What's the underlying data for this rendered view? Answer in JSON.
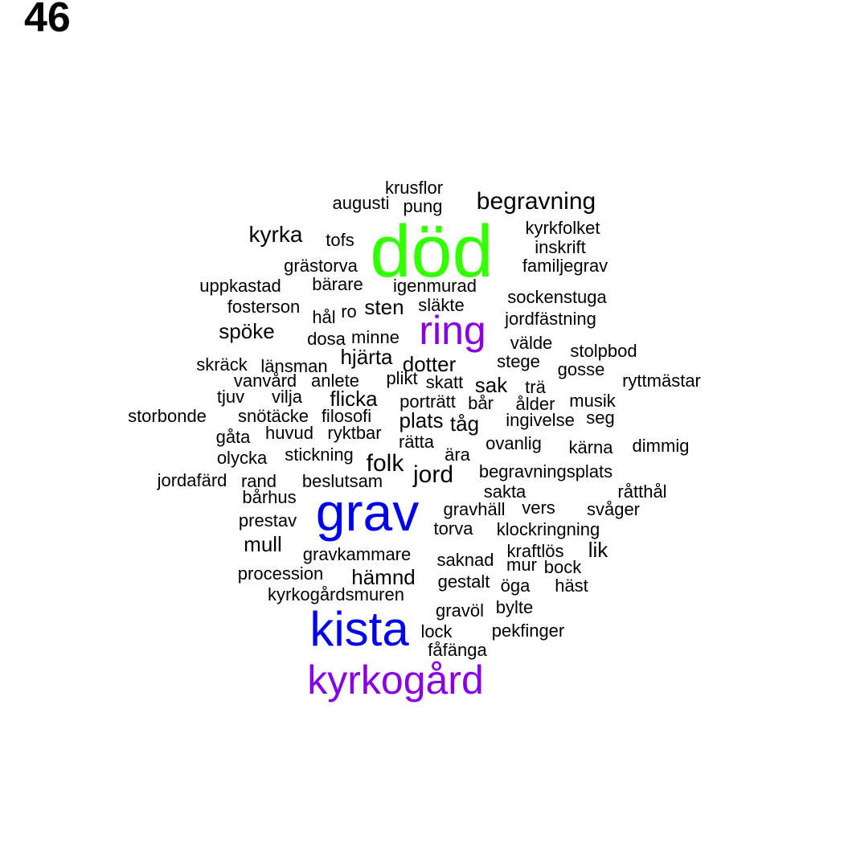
{
  "page": {
    "label": "46"
  },
  "colors": {
    "default": "#000000",
    "green": "#33ff00",
    "blue": "#0000ee",
    "purple": "#8a00e6"
  },
  "words": [
    {
      "text": "död",
      "color": "green"
    },
    {
      "text": "grav",
      "color": "blue"
    },
    {
      "text": "kista",
      "color": "blue"
    },
    {
      "text": "kyrkogård",
      "color": "purple"
    },
    {
      "text": "ring",
      "color": "purple"
    },
    {
      "text": "krusflor"
    },
    {
      "text": "augusti"
    },
    {
      "text": "pung"
    },
    {
      "text": "begravning"
    },
    {
      "text": "kyrka"
    },
    {
      "text": "tofs"
    },
    {
      "text": "kyrkfolket"
    },
    {
      "text": "inskrift"
    },
    {
      "text": "grästorva"
    },
    {
      "text": "familjegrav"
    },
    {
      "text": "uppkastad"
    },
    {
      "text": "bärare"
    },
    {
      "text": "igenmurad"
    },
    {
      "text": "sockenstuga"
    },
    {
      "text": "fosterson"
    },
    {
      "text": "hål"
    },
    {
      "text": "ro"
    },
    {
      "text": "sten"
    },
    {
      "text": "släkte"
    },
    {
      "text": "jordfästning"
    },
    {
      "text": "spöke"
    },
    {
      "text": "dosa"
    },
    {
      "text": "minne"
    },
    {
      "text": "välde"
    },
    {
      "text": "stolpbod"
    },
    {
      "text": "skräck"
    },
    {
      "text": "länsman"
    },
    {
      "text": "hjärta"
    },
    {
      "text": "dotter"
    },
    {
      "text": "stege"
    },
    {
      "text": "gosse"
    },
    {
      "text": "vanvård"
    },
    {
      "text": "anlete"
    },
    {
      "text": "plikt"
    },
    {
      "text": "skatt"
    },
    {
      "text": "sak"
    },
    {
      "text": "trä"
    },
    {
      "text": "ryttmästar"
    },
    {
      "text": "tjuv"
    },
    {
      "text": "vilja"
    },
    {
      "text": "flicka"
    },
    {
      "text": "porträtt"
    },
    {
      "text": "bår"
    },
    {
      "text": "ålder"
    },
    {
      "text": "musik"
    },
    {
      "text": "storbonde"
    },
    {
      "text": "snötäcke"
    },
    {
      "text": "filosofi"
    },
    {
      "text": "plats"
    },
    {
      "text": "tåg"
    },
    {
      "text": "ingivelse"
    },
    {
      "text": "seg"
    },
    {
      "text": "gåta"
    },
    {
      "text": "huvud"
    },
    {
      "text": "ryktbar"
    },
    {
      "text": "rätta"
    },
    {
      "text": "ovanlig"
    },
    {
      "text": "kärna"
    },
    {
      "text": "dimmig"
    },
    {
      "text": "olycka"
    },
    {
      "text": "stickning"
    },
    {
      "text": "folk"
    },
    {
      "text": "ära"
    },
    {
      "text": "jord"
    },
    {
      "text": "begravningsplats"
    },
    {
      "text": "jordafärd"
    },
    {
      "text": "rand"
    },
    {
      "text": "beslutsam"
    },
    {
      "text": "sakta"
    },
    {
      "text": "råtthål"
    },
    {
      "text": "bårhus"
    },
    {
      "text": "gravhäll"
    },
    {
      "text": "vers"
    },
    {
      "text": "svåger"
    },
    {
      "text": "prestav"
    },
    {
      "text": "torva"
    },
    {
      "text": "klockringning"
    },
    {
      "text": "mull"
    },
    {
      "text": "kraftlös"
    },
    {
      "text": "lik"
    },
    {
      "text": "gravkammare"
    },
    {
      "text": "saknad"
    },
    {
      "text": "mur"
    },
    {
      "text": "bock"
    },
    {
      "text": "procession"
    },
    {
      "text": "hämnd"
    },
    {
      "text": "gestalt"
    },
    {
      "text": "öga"
    },
    {
      "text": "häst"
    },
    {
      "text": "kyrkogårdsmuren"
    },
    {
      "text": "gravöl"
    },
    {
      "text": "bylte"
    },
    {
      "text": "lock"
    },
    {
      "text": "pekfinger"
    },
    {
      "text": "fåfänga"
    }
  ]
}
